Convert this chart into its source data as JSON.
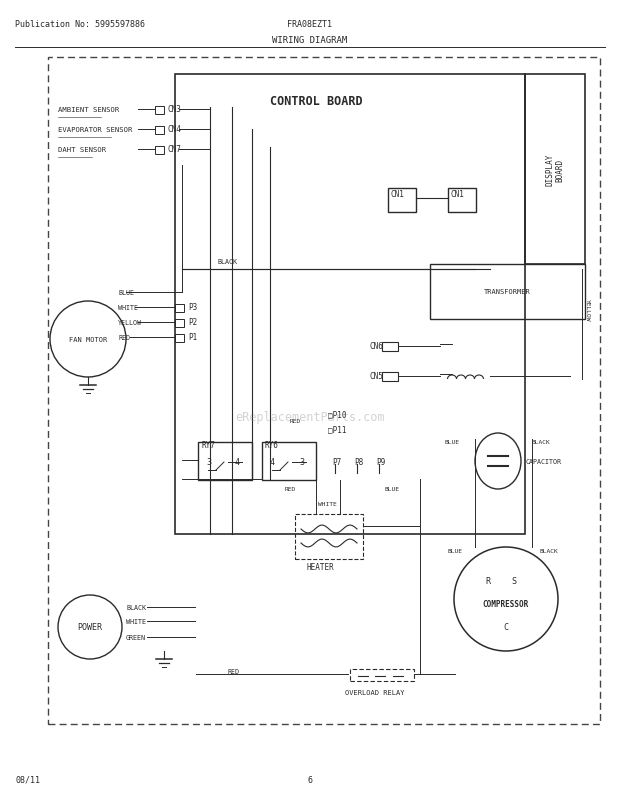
{
  "bg_color": "#ffffff",
  "line_color": "#2a2a2a",
  "header_pub": "Publication No: 5995597886",
  "header_model": "FRA08EZT1",
  "header_title": "WIRING DIAGRAM",
  "footer_date": "08/11",
  "footer_page": "6",
  "watermark": "eReplacementParts.com"
}
